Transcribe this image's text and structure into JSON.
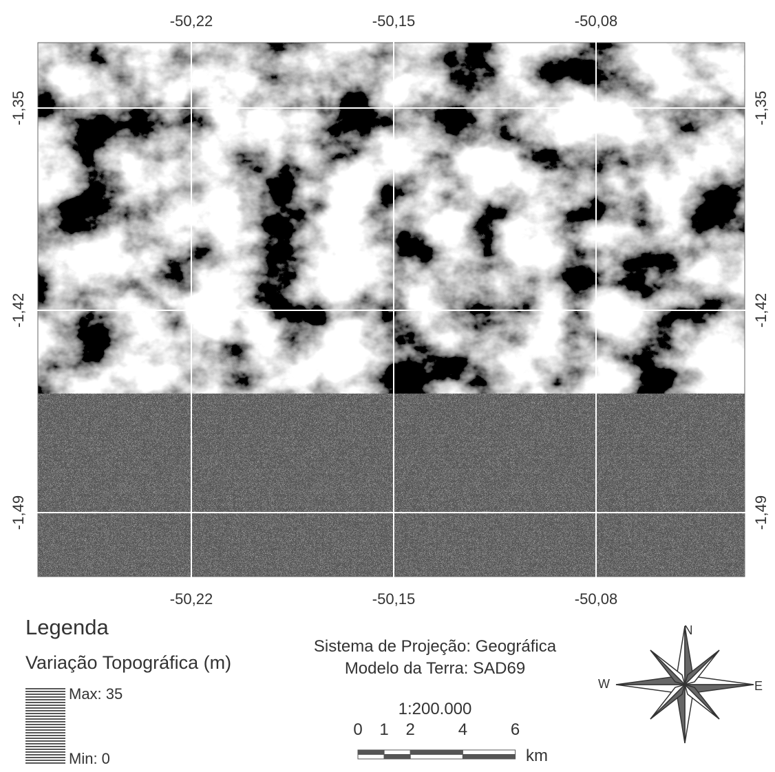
{
  "map": {
    "x_labels": [
      "-50,22",
      "-50,15",
      "-50,08"
    ],
    "y_labels": [
      "-1,35",
      "-1,42",
      "-1,49"
    ],
    "legend": {
      "title": "Legenda",
      "subtitle": "Variação Topográfica (m)",
      "max": "Max: 35",
      "min": "Min: 0"
    },
    "projection": {
      "system": "Sistema de Projeção: Geográfica",
      "datum": "Modelo da Terra: SAD69"
    },
    "scale": {
      "ratio": "1:200.000",
      "ticks": [
        0,
        1,
        2,
        4,
        6
      ],
      "unit": "km"
    },
    "compass": {
      "north": "N",
      "west": "W",
      "east": "E"
    }
  }
}
